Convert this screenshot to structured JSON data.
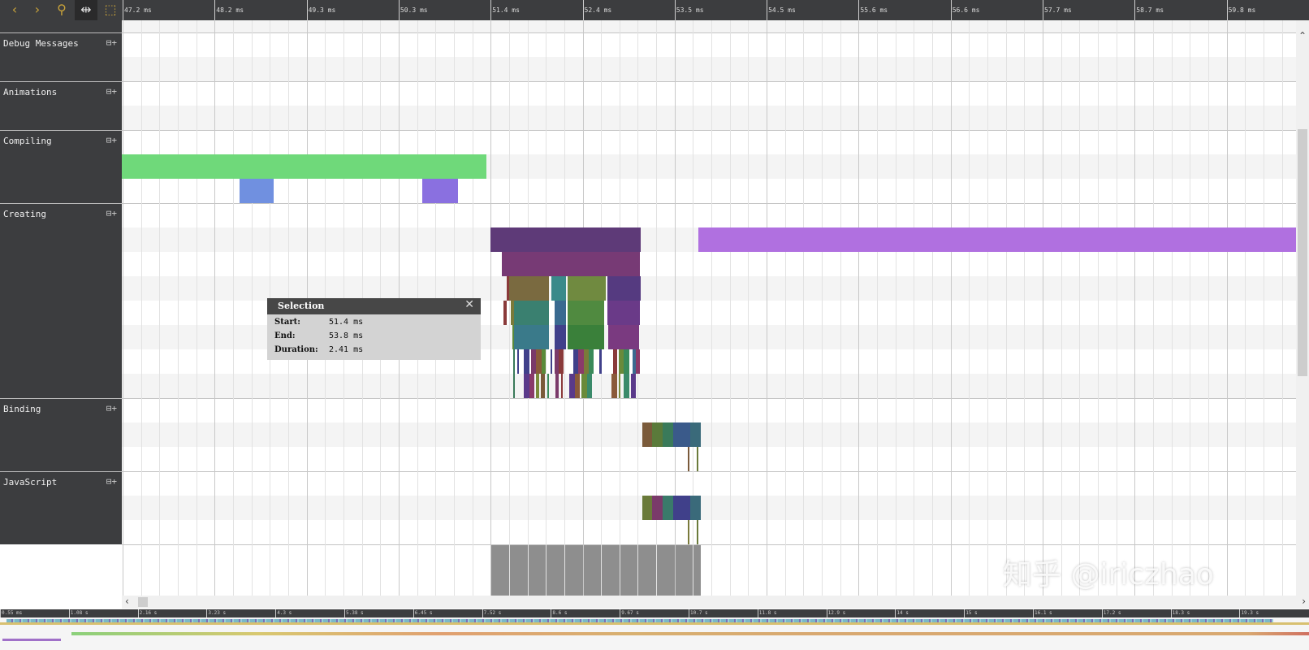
{
  "toolbar": {
    "buttons": [
      {
        "icon": "chevron-left-icon",
        "glyph": "‹"
      },
      {
        "icon": "chevron-right-icon",
        "glyph": "›"
      },
      {
        "icon": "search-icon",
        "glyph": "⚲"
      },
      {
        "icon": "fit-range-icon",
        "glyph": "⇹",
        "selected": true
      },
      {
        "icon": "select-range-icon",
        "glyph": "⬚"
      }
    ]
  },
  "ruler": {
    "labels": [
      "47.2 ms",
      "48.2 ms",
      "49.3 ms",
      "50.3 ms",
      "51.4 ms",
      "52.4 ms",
      "53.5 ms",
      "54.5 ms",
      "55.6 ms",
      "56.6 ms",
      "57.7 ms",
      "58.7 ms",
      "59.8 ms"
    ],
    "start_ms": 47.2,
    "step_ms": 1.05
  },
  "lanes": [
    {
      "name": "Debug Messages",
      "rows": 2
    },
    {
      "name": "Animations",
      "rows": 2
    },
    {
      "name": "Compiling",
      "rows": 3
    },
    {
      "name": "Creating",
      "rows": 8
    },
    {
      "name": "Binding",
      "rows": 3
    },
    {
      "name": "JavaScript",
      "rows": 3
    }
  ],
  "expand_icon": "⊟+",
  "events": [
    {
      "lane": 2,
      "row": 1,
      "start": 46.9,
      "end": 51.35,
      "color": "#6fd97a"
    },
    {
      "lane": 2,
      "row": 2,
      "start": 48.53,
      "end": 48.92,
      "color": "#7090e0"
    },
    {
      "lane": 2,
      "row": 2,
      "start": 50.62,
      "end": 51.03,
      "color": "#8a70e0"
    },
    {
      "lane": 3,
      "row": 1,
      "start": 51.4,
      "end": 53.11,
      "color": "#5e3a78"
    },
    {
      "lane": 3,
      "row": 1,
      "start": 53.77,
      "end": 60.6,
      "color": "#b070e0"
    },
    {
      "lane": 3,
      "row": 2,
      "start": 51.53,
      "end": 53.1,
      "color": "#773a75"
    },
    {
      "lane": 3,
      "row": 3,
      "start": 51.58,
      "end": 51.61,
      "color": "#8a3a3a"
    },
    {
      "lane": 3,
      "row": 3,
      "start": 51.61,
      "end": 52.07,
      "color": "#7a6a40"
    },
    {
      "lane": 3,
      "row": 3,
      "start": 52.09,
      "end": 52.26,
      "color": "#3a8a8a"
    },
    {
      "lane": 3,
      "row": 3,
      "start": 52.28,
      "end": 52.71,
      "color": "#708a40"
    },
    {
      "lane": 3,
      "row": 3,
      "start": 52.73,
      "end": 53.11,
      "color": "#553a80"
    },
    {
      "lane": 3,
      "row": 4,
      "start": 51.55,
      "end": 51.58,
      "color": "#8a3a3a"
    },
    {
      "lane": 3,
      "row": 4,
      "start": 51.63,
      "end": 51.67,
      "color": "#7a7a3a"
    },
    {
      "lane": 3,
      "row": 4,
      "start": 51.67,
      "end": 52.07,
      "color": "#3a8070"
    },
    {
      "lane": 3,
      "row": 4,
      "start": 52.13,
      "end": 52.26,
      "color": "#3a6a90"
    },
    {
      "lane": 3,
      "row": 4,
      "start": 52.28,
      "end": 52.7,
      "color": "#508a40"
    },
    {
      "lane": 3,
      "row": 4,
      "start": 52.73,
      "end": 53.1,
      "color": "#6a3a88"
    },
    {
      "lane": 3,
      "row": 5,
      "start": 51.65,
      "end": 51.67,
      "color": "#5a8a3a"
    },
    {
      "lane": 3,
      "row": 5,
      "start": 51.67,
      "end": 52.07,
      "color": "#3a7a8a"
    },
    {
      "lane": 3,
      "row": 5,
      "start": 52.13,
      "end": 52.26,
      "color": "#40408a"
    },
    {
      "lane": 3,
      "row": 5,
      "start": 52.28,
      "end": 52.7,
      "color": "#3a803a"
    },
    {
      "lane": 3,
      "row": 5,
      "start": 52.74,
      "end": 53.09,
      "color": "#7a3a80"
    },
    {
      "lane": 3,
      "row": 6,
      "start": 51.66,
      "end": 51.68,
      "color": "#3a7a5a"
    },
    {
      "lane": 3,
      "row": 6,
      "start": 51.7,
      "end": 51.72,
      "color": "#40408a"
    },
    {
      "lane": 3,
      "row": 6,
      "start": 51.78,
      "end": 51.84,
      "color": "#40408a"
    },
    {
      "lane": 3,
      "row": 6,
      "start": 51.86,
      "end": 51.92,
      "color": "#7a3a6a"
    },
    {
      "lane": 3,
      "row": 6,
      "start": 51.92,
      "end": 51.98,
      "color": "#8a5a3a"
    },
    {
      "lane": 3,
      "row": 6,
      "start": 51.98,
      "end": 52.03,
      "color": "#5a8a3a"
    },
    {
      "lane": 3,
      "row": 6,
      "start": 52.08,
      "end": 52.1,
      "color": "#40408a"
    },
    {
      "lane": 3,
      "row": 6,
      "start": 52.13,
      "end": 52.18,
      "color": "#7a3a6a"
    },
    {
      "lane": 3,
      "row": 6,
      "start": 52.18,
      "end": 52.23,
      "color": "#8a3a3a"
    },
    {
      "lane": 3,
      "row": 6,
      "start": 52.34,
      "end": 52.4,
      "color": "#40408a"
    },
    {
      "lane": 3,
      "row": 6,
      "start": 52.4,
      "end": 52.46,
      "color": "#8a3a6a"
    },
    {
      "lane": 3,
      "row": 6,
      "start": 52.46,
      "end": 52.52,
      "color": "#7a7a3a"
    },
    {
      "lane": 3,
      "row": 6,
      "start": 52.52,
      "end": 52.58,
      "color": "#3a8a5a"
    },
    {
      "lane": 3,
      "row": 6,
      "start": 52.64,
      "end": 52.67,
      "color": "#40408a"
    },
    {
      "lane": 3,
      "row": 6,
      "start": 52.8,
      "end": 52.84,
      "color": "#8a3a3a"
    },
    {
      "lane": 3,
      "row": 6,
      "start": 52.86,
      "end": 52.92,
      "color": "#6a8a3a"
    },
    {
      "lane": 3,
      "row": 6,
      "start": 52.92,
      "end": 52.98,
      "color": "#3a8a5a"
    },
    {
      "lane": 3,
      "row": 6,
      "start": 53.02,
      "end": 53.06,
      "color": "#3a6a90"
    },
    {
      "lane": 3,
      "row": 6,
      "start": 53.06,
      "end": 53.1,
      "color": "#8a3a6a"
    },
    {
      "lane": 3,
      "row": 7,
      "start": 51.66,
      "end": 51.68,
      "color": "#3a7a5a"
    },
    {
      "lane": 3,
      "row": 7,
      "start": 51.78,
      "end": 51.84,
      "color": "#5a3a8a"
    },
    {
      "lane": 3,
      "row": 7,
      "start": 51.84,
      "end": 51.9,
      "color": "#8a3a6a"
    },
    {
      "lane": 3,
      "row": 7,
      "start": 51.92,
      "end": 51.95,
      "color": "#7a8a3a"
    },
    {
      "lane": 3,
      "row": 7,
      "start": 51.97,
      "end": 52.02,
      "color": "#7a5a3a"
    },
    {
      "lane": 3,
      "row": 7,
      "start": 52.05,
      "end": 52.07,
      "color": "#3a8a5a"
    },
    {
      "lane": 3,
      "row": 7,
      "start": 52.14,
      "end": 52.18,
      "color": "#7a3a6a"
    },
    {
      "lane": 3,
      "row": 7,
      "start": 52.2,
      "end": 52.22,
      "color": "#8a3a3a"
    },
    {
      "lane": 3,
      "row": 7,
      "start": 52.3,
      "end": 52.36,
      "color": "#5a3a8a"
    },
    {
      "lane": 3,
      "row": 7,
      "start": 52.36,
      "end": 52.42,
      "color": "#8a5a3a"
    },
    {
      "lane": 3,
      "row": 7,
      "start": 52.44,
      "end": 52.5,
      "color": "#6a8a3a"
    },
    {
      "lane": 3,
      "row": 7,
      "start": 52.5,
      "end": 52.56,
      "color": "#3a8a6a"
    },
    {
      "lane": 3,
      "row": 7,
      "start": 52.78,
      "end": 52.84,
      "color": "#8a5a3a"
    },
    {
      "lane": 3,
      "row": 7,
      "start": 52.86,
      "end": 52.88,
      "color": "#7a8a3a"
    },
    {
      "lane": 3,
      "row": 7,
      "start": 52.92,
      "end": 52.98,
      "color": "#3a8a6a"
    },
    {
      "lane": 3,
      "row": 7,
      "start": 53.0,
      "end": 53.06,
      "color": "#5a3a8a"
    },
    {
      "lane": 4,
      "row": 1,
      "start": 53.13,
      "end": 53.24,
      "color": "#7a5a3a"
    },
    {
      "lane": 4,
      "row": 1,
      "start": 53.24,
      "end": 53.36,
      "color": "#5a7a3a"
    },
    {
      "lane": 4,
      "row": 1,
      "start": 53.36,
      "end": 53.48,
      "color": "#3a7a5a"
    },
    {
      "lane": 4,
      "row": 1,
      "start": 53.48,
      "end": 53.68,
      "color": "#3a5a8a"
    },
    {
      "lane": 4,
      "row": 1,
      "start": 53.68,
      "end": 53.8,
      "color": "#3a6a7a"
    },
    {
      "lane": 4,
      "row": 2,
      "start": 53.65,
      "end": 53.67,
      "color": "#7a5a3a"
    },
    {
      "lane": 4,
      "row": 2,
      "start": 53.75,
      "end": 53.77,
      "color": "#6a7a3a"
    },
    {
      "lane": 5,
      "row": 1,
      "start": 53.13,
      "end": 53.24,
      "color": "#6a7a3a"
    },
    {
      "lane": 5,
      "row": 1,
      "start": 53.24,
      "end": 53.36,
      "color": "#7a3a6a"
    },
    {
      "lane": 5,
      "row": 1,
      "start": 53.36,
      "end": 53.48,
      "color": "#3a7a6a"
    },
    {
      "lane": 5,
      "row": 1,
      "start": 53.48,
      "end": 53.68,
      "color": "#40408a"
    },
    {
      "lane": 5,
      "row": 1,
      "start": 53.68,
      "end": 53.8,
      "color": "#3a6a7a"
    },
    {
      "lane": 5,
      "row": 2,
      "start": 53.65,
      "end": 53.67,
      "color": "#7a7a3a"
    },
    {
      "lane": 5,
      "row": 2,
      "start": 53.75,
      "end": 53.77,
      "color": "#6a7a3a"
    }
  ],
  "selection": {
    "title": "Selection",
    "start_label": "Start:",
    "start": "51.4 ms",
    "start_ms": 51.4,
    "end_label": "End:",
    "end": "53.8 ms",
    "end_ms": 53.8,
    "duration_label": "Duration:",
    "duration": "2.41 ms"
  },
  "overview": {
    "labels": [
      "0.55 ms",
      "1.08 s",
      "2.16 s",
      "3.23 s",
      "4.3 s",
      "5.38 s",
      "6.45 s",
      "7.52 s",
      "8.6 s",
      "9.67 s",
      "10.7 s",
      "11.8 s",
      "12.9 s",
      "14 s",
      "15 s",
      "16.1 s",
      "17.2 s",
      "18.3 s",
      "19.3 s"
    ]
  },
  "watermark": "知乎 @iriczhao"
}
